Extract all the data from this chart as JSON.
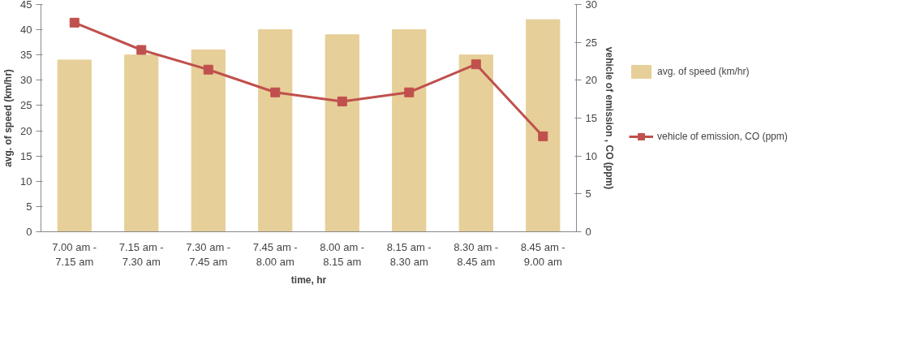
{
  "chart_data": {
    "type": "bar",
    "xlabel": "time, hr",
    "ylabel": "avg. of speed (km/hr)",
    "y2label": "vehicle of emission , CO (ppm)",
    "categories": [
      "7.00 am -\n7.15 am",
      "7.15 am -\n7.30 am",
      "7.30 am -\n7.45 am",
      "7.45 am -\n8.00 am",
      "8.00 am -\n8.15 am",
      "8.15 am -\n8.30 am",
      "8.30 am -\n8.45 am",
      "8.45 am -\n9.00 am"
    ],
    "series": [
      {
        "name": "avg. of speed (km/hr)",
        "color": "#e6cf98",
        "values": [
          34,
          35,
          36,
          40,
          39,
          40,
          35,
          42
        ]
      },
      {
        "name": "vehicle of emission, CO (ppm)",
        "type": "line",
        "axis": "y2",
        "color": "#c0504d",
        "marker": "square",
        "values": [
          27.6,
          24.0,
          21.4,
          18.4,
          17.2,
          18.4,
          22.1,
          12.6
        ]
      }
    ],
    "ylim": [
      0,
      45
    ],
    "yticks": [
      0,
      5,
      10,
      15,
      20,
      25,
      30,
      35,
      40,
      45
    ],
    "y2lim": [
      0,
      30
    ],
    "y2ticks": [
      0,
      5,
      10,
      15,
      20,
      25,
      30
    ],
    "grid": false,
    "legend": "right"
  }
}
